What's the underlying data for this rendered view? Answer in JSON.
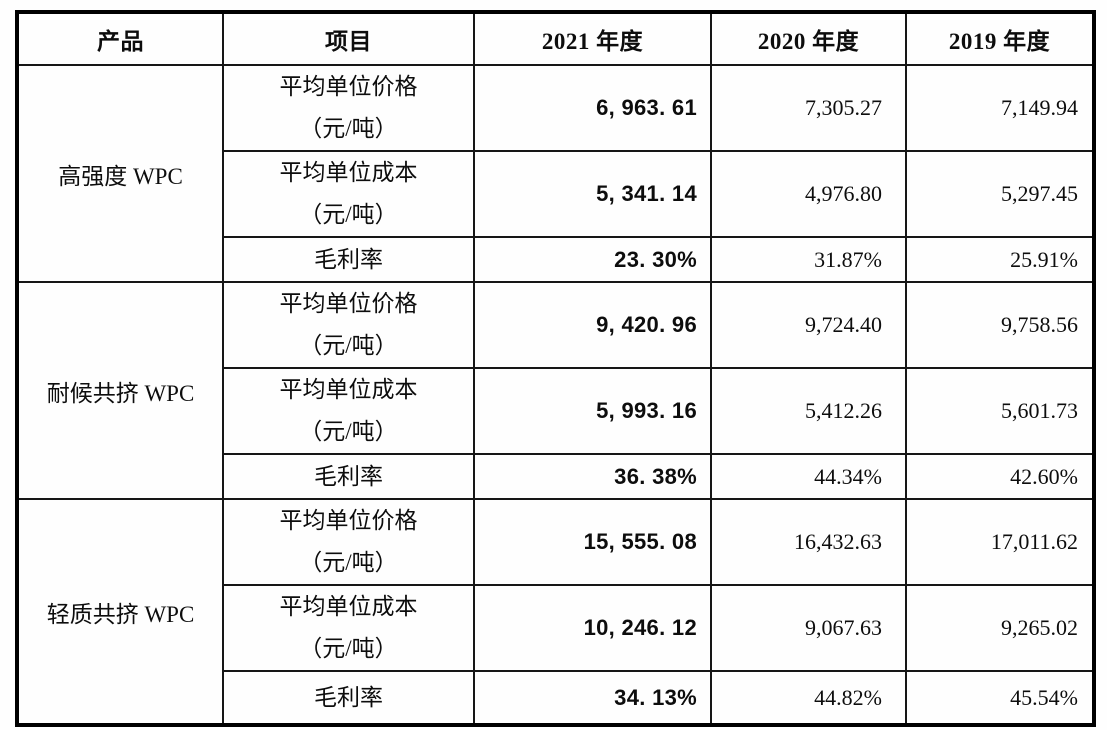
{
  "page": {
    "background_color": "#fefefe",
    "text_color": "#0d0d0d",
    "border_color": "#000000"
  },
  "table": {
    "headers": [
      "产品",
      "项目",
      "2021 年度",
      "2020 年度",
      "2019 年度"
    ],
    "groups": [
      {
        "product": "高强度 WPC",
        "rows": [
          {
            "item": "平均单位价格\n（元/吨）",
            "values": [
              "6, 963. 61",
              "7,305.27",
              "7,149.94"
            ]
          },
          {
            "item": "平均单位成本\n（元/吨）",
            "values": [
              "5, 341. 14",
              "4,976.80",
              "5,297.45"
            ]
          },
          {
            "item": "毛利率",
            "values": [
              "23. 30%",
              "31.87%",
              "25.91%"
            ]
          }
        ]
      },
      {
        "product": "耐候共挤 WPC",
        "rows": [
          {
            "item": "平均单位价格\n（元/吨）",
            "values": [
              "9, 420. 96",
              "9,724.40",
              "9,758.56"
            ]
          },
          {
            "item": "平均单位成本\n（元/吨）",
            "values": [
              "5, 993. 16",
              "5,412.26",
              "5,601.73"
            ]
          },
          {
            "item": "毛利率",
            "values": [
              "36. 38%",
              "44.34%",
              "42.60%"
            ]
          }
        ]
      },
      {
        "product": "轻质共挤 WPC",
        "rows": [
          {
            "item": "平均单位价格\n（元/吨）",
            "values": [
              "15, 555. 08",
              "16,432.63",
              "17,011.62"
            ]
          },
          {
            "item": "平均单位成本\n（元/吨）",
            "values": [
              "10, 246. 12",
              "9,067.63",
              "9,265.02"
            ]
          },
          {
            "item": "毛利率",
            "values": [
              "34. 13%",
              "44.82%",
              "45.54%"
            ]
          }
        ]
      }
    ]
  }
}
